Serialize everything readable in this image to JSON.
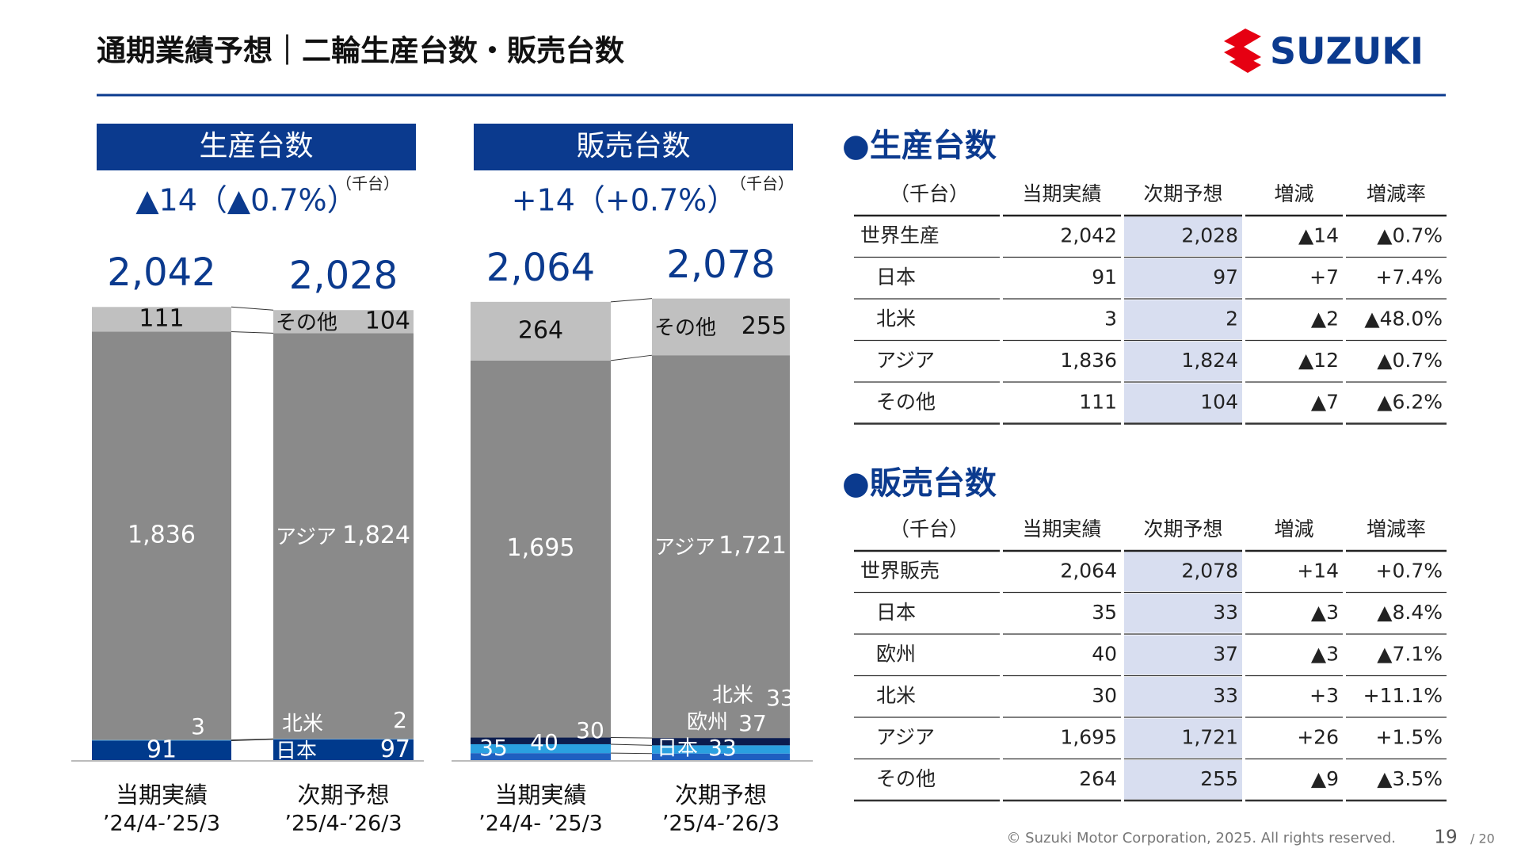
{
  "header": {
    "title": "通期業績予想｜二輪生産台数・販売台数",
    "logo": "SUZUKI"
  },
  "chart_data": [
    {
      "type": "stacked_bar",
      "title": "生産台数",
      "subtitle": "▲14（▲0.7%）",
      "unit": "（千台）",
      "categories": [
        "当期実績",
        "次期予想"
      ],
      "periods": [
        "’24/4-’25/3",
        "’25/4-’26/3"
      ],
      "series": [
        {
          "name": "日本",
          "color": "#003a8c",
          "values": [
            91,
            97
          ]
        },
        {
          "name": "北米",
          "color": "#4fa3e0",
          "values": [
            3,
            2
          ]
        },
        {
          "name": "アジア",
          "color": "#8a8a8a",
          "values": [
            1836,
            1824
          ],
          "value_labels": [
            "1,836",
            "1,824"
          ]
        },
        {
          "name": "その他",
          "color": "#c0c0c0",
          "values": [
            111,
            104
          ]
        }
      ],
      "totals": [
        2042,
        2028
      ],
      "total_labels": [
        "2,042",
        "2,028"
      ],
      "ylim": [
        0,
        2500
      ]
    },
    {
      "type": "stacked_bar",
      "title": "販売台数",
      "subtitle": "+14（+0.7%）",
      "unit": "（千台）",
      "categories": [
        "当期実績",
        "次期予想"
      ],
      "periods": [
        "’24/4- ’25/3",
        "’25/4-’26/3"
      ],
      "series": [
        {
          "name": "日本",
          "color": "#1f5fc0",
          "values": [
            35,
            33
          ]
        },
        {
          "name": "欧州",
          "color": "#2aa0e0",
          "values": [
            40,
            37
          ]
        },
        {
          "name": "北米",
          "color": "#0b1d4f",
          "values": [
            30,
            33
          ]
        },
        {
          "name": "アジア",
          "color": "#8a8a8a",
          "values": [
            1695,
            1721
          ],
          "value_labels": [
            "1,695",
            "1,721"
          ]
        },
        {
          "name": "その他",
          "color": "#c0c0c0",
          "values": [
            264,
            255
          ]
        }
      ],
      "totals": [
        2064,
        2078
      ],
      "total_labels": [
        "2,064",
        "2,078"
      ],
      "ylim": [
        0,
        2500
      ]
    }
  ],
  "tables": [
    {
      "title": "●生産台数",
      "columns": [
        "（千台）",
        "当期実績",
        "次期予想",
        "増減",
        "増減率"
      ],
      "rows": [
        [
          "世界生産",
          "2,042",
          "2,028",
          "▲14",
          "▲0.7%"
        ],
        [
          "日本",
          "91",
          "97",
          "+7",
          "+7.4%"
        ],
        [
          "北米",
          "3",
          "2",
          "▲2",
          "▲48.0%"
        ],
        [
          "アジア",
          "1,836",
          "1,824",
          "▲12",
          "▲0.7%"
        ],
        [
          "その他",
          "111",
          "104",
          "▲7",
          "▲6.2%"
        ]
      ]
    },
    {
      "title": "●販売台数",
      "columns": [
        "（千台）",
        "当期実績",
        "次期予想",
        "増減",
        "増減率"
      ],
      "rows": [
        [
          "世界販売",
          "2,064",
          "2,078",
          "+14",
          "+0.7%"
        ],
        [
          "日本",
          "35",
          "33",
          "▲3",
          "▲8.4%"
        ],
        [
          "欧州",
          "40",
          "37",
          "▲3",
          "▲7.1%"
        ],
        [
          "北米",
          "30",
          "33",
          "+3",
          "+11.1%"
        ],
        [
          "アジア",
          "1,695",
          "1,721",
          "+26",
          "+1.5%"
        ],
        [
          "その他",
          "264",
          "255",
          "▲9",
          "▲3.5%"
        ]
      ]
    }
  ],
  "footer": {
    "copyright": "© Suzuki Motor Corporation, 2025. All rights reserved.",
    "page": "19",
    "total_pages": "/ 20"
  }
}
